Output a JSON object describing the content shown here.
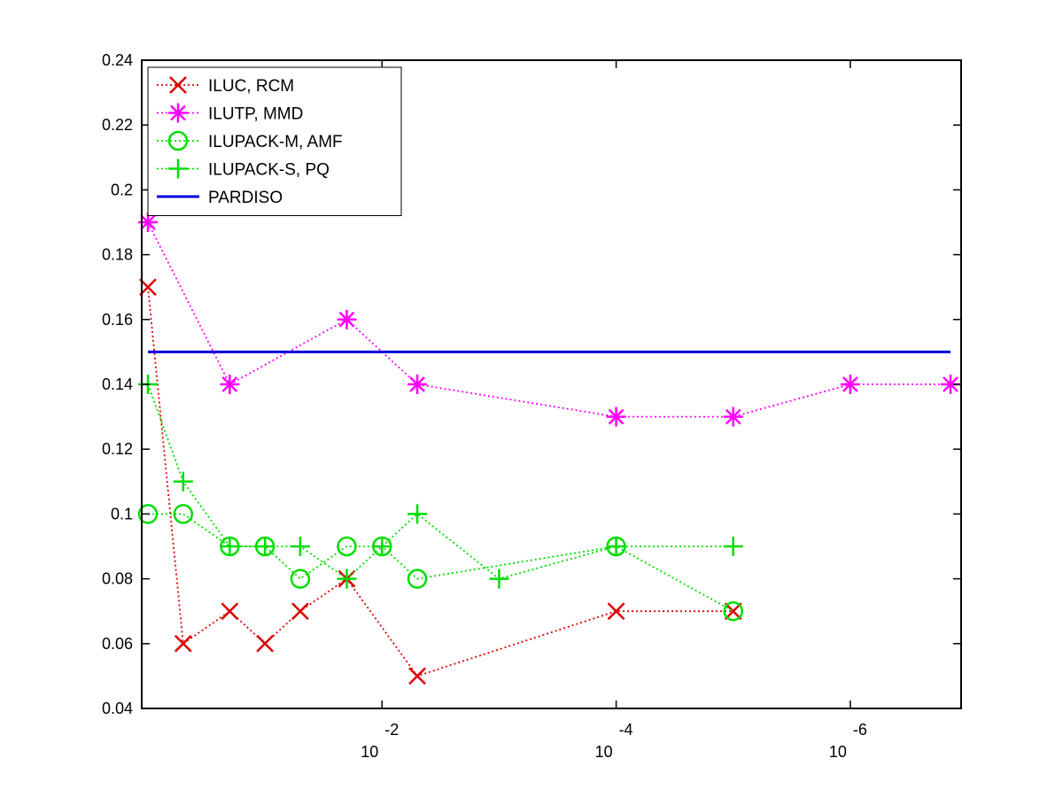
{
  "chart_data": {
    "type": "line",
    "title": "",
    "xlabel": "",
    "ylabel": "",
    "x_scale": "log-reversed",
    "xlim": [
      1,
      1e-07
    ],
    "ylim": [
      0.04,
      0.24
    ],
    "yticks": [
      0.04,
      0.06,
      0.08,
      0.1,
      0.12,
      0.14,
      0.16,
      0.18,
      0.2,
      0.22,
      0.24
    ],
    "ytick_labels": [
      "0.04",
      "0.06",
      "0.08",
      "0.1",
      "0.12",
      "0.14",
      "0.16",
      "0.18",
      "0.2",
      "0.22",
      "0.24"
    ],
    "xticks": [
      {
        "value": 0.01,
        "base": "10",
        "exponent": "-2"
      },
      {
        "value": 0.0001,
        "base": "10",
        "exponent": "-4"
      },
      {
        "value": 1e-06,
        "base": "10",
        "exponent": "-6"
      }
    ],
    "legend_position": "top-left",
    "grid": false,
    "series": [
      {
        "name": "ILUC, RCM",
        "color": "#dd0000",
        "marker": "x",
        "line": "dotted",
        "x": [
          1,
          0.5,
          0.2,
          0.1,
          0.05,
          0.02,
          0.005,
          0.0001,
          1e-05
        ],
        "y": [
          0.17,
          0.06,
          0.07,
          0.06,
          0.07,
          0.08,
          0.05,
          0.07,
          0.07
        ]
      },
      {
        "name": "ILUTP, MMD",
        "color": "#ff00ff",
        "marker": "asterisk",
        "line": "dotted",
        "x": [
          1,
          0.2,
          0.02,
          0.005,
          0.0001,
          1e-05,
          1e-06,
          1e-07
        ],
        "y": [
          0.19,
          0.14,
          0.16,
          0.14,
          0.13,
          0.13,
          0.14,
          0.14
        ]
      },
      {
        "name": "ILUPACK-M, AMF",
        "color": "#00dd00",
        "marker": "circle",
        "line": "dotted",
        "x": [
          1,
          0.5,
          0.2,
          0.1,
          0.05,
          0.02,
          0.01,
          0.005,
          0.0001,
          1e-05
        ],
        "y": [
          0.1,
          0.1,
          0.09,
          0.09,
          0.08,
          0.09,
          0.09,
          0.08,
          0.09,
          0.07
        ]
      },
      {
        "name": "ILUPACK-S, PQ",
        "color": "#00dd00",
        "marker": "plus",
        "line": "dotted",
        "x": [
          1,
          0.5,
          0.2,
          0.1,
          0.05,
          0.02,
          0.01,
          0.005,
          0.001,
          0.0001,
          1e-05
        ],
        "y": [
          0.14,
          0.11,
          0.09,
          0.09,
          0.09,
          0.08,
          0.09,
          0.1,
          0.08,
          0.09,
          0.09
        ]
      },
      {
        "name": "PARDISO",
        "color": "#0000dd",
        "marker": "none",
        "line": "solid",
        "x": [
          1,
          1e-07
        ],
        "y": [
          0.15,
          0.15
        ]
      }
    ]
  }
}
